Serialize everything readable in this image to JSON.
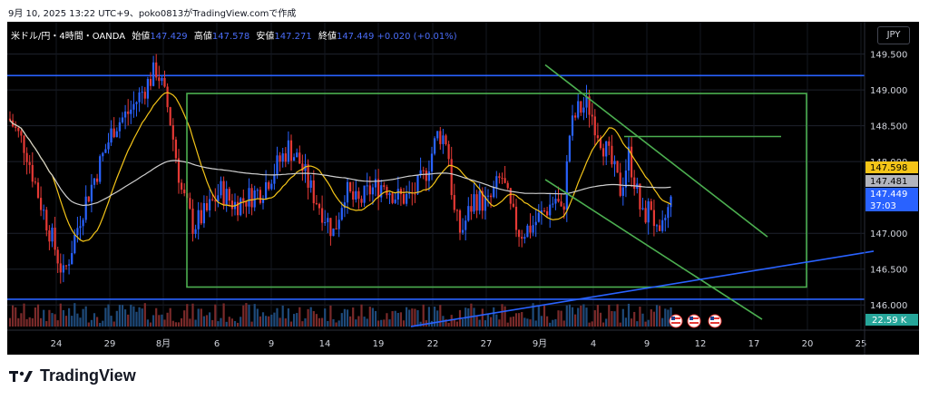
{
  "header": {
    "caption": "9月 10, 2025 13:22 UTC+9、poko0813がTradingView.comで作成"
  },
  "legend": {
    "symbol": "米ドル/円・4時間・OANDA",
    "open_label": "始値",
    "open": "147.429",
    "high_label": "高値",
    "high": "147.578",
    "low_label": "安値",
    "low": "147.271",
    "close_label": "終値",
    "close": "147.449",
    "change": "+0.020 (+0.01%)"
  },
  "currency_button": "JPY",
  "chart_data": {
    "type": "candlestick",
    "y_axis": {
      "ticks": [
        "149.500",
        "149.000",
        "148.500",
        "148.000",
        "147.000",
        "146.500",
        "146.000"
      ],
      "range": [
        145.7,
        149.95
      ]
    },
    "x_axis": {
      "ticks": [
        "24",
        "29",
        "8月",
        "6",
        "9",
        "14",
        "19",
        "22",
        "27",
        "9月",
        "4",
        "9",
        "12",
        "17",
        "20",
        "25"
      ]
    },
    "price_labels": [
      {
        "value": "147.598",
        "color": "#f5c518"
      },
      {
        "value": "147.481",
        "color": "#b2b5be"
      },
      {
        "value": "147.449",
        "color": "#2962ff"
      },
      {
        "value": "37:03",
        "color": "#2962ff"
      }
    ],
    "volume_label": "22.59 K",
    "horizontal_lines": [
      149.2,
      146.08
    ],
    "colors": {
      "up": "#2962ff",
      "down": "#e53935",
      "ma_fast": "#f5c518",
      "ma_slow": "#cfcfcf",
      "lines": "#2962ff",
      "box": "#4caf50"
    },
    "event_icons": [
      "us-flag-icon",
      "us-flag-icon",
      "us-flag-icon"
    ]
  },
  "branding": {
    "logo_text": "TradingView"
  }
}
